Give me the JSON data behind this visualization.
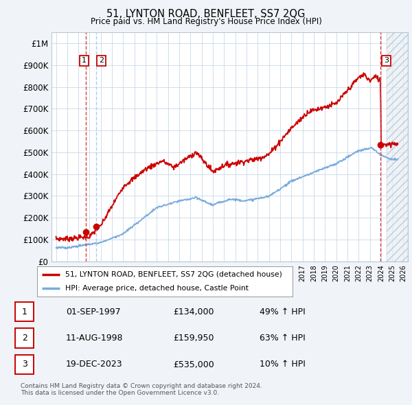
{
  "title": "51, LYNTON ROAD, BENFLEET, SS7 2QG",
  "subtitle": "Price paid vs. HM Land Registry's House Price Index (HPI)",
  "ylabel_ticks": [
    "£0",
    "£100K",
    "£200K",
    "£300K",
    "£400K",
    "£500K",
    "£600K",
    "£700K",
    "£800K",
    "£900K",
    "£1M"
  ],
  "ytick_values": [
    0,
    100000,
    200000,
    300000,
    400000,
    500000,
    600000,
    700000,
    800000,
    900000,
    1000000
  ],
  "ylim": [
    0,
    1050000
  ],
  "xlim_start": 1994.6,
  "xlim_end": 2026.4,
  "sale_dates": [
    1997.667,
    1998.608,
    2023.962
  ],
  "sale_prices": [
    134000,
    159950,
    535000
  ],
  "sale_labels": [
    "1",
    "2",
    "3"
  ],
  "marker_color": "#cc0000",
  "line_color_property": "#cc0000",
  "line_color_hpi": "#7aaadd",
  "legend_label_property": "51, LYNTON ROAD, BENFLEET, SS7 2QG (detached house)",
  "legend_label_hpi": "HPI: Average price, detached house, Castle Point",
  "table_data": [
    [
      "1",
      "01-SEP-1997",
      "£134,000",
      "49% ↑ HPI"
    ],
    [
      "2",
      "11-AUG-1998",
      "£159,950",
      "63% ↑ HPI"
    ],
    [
      "3",
      "19-DEC-2023",
      "£535,000",
      "10% ↑ HPI"
    ]
  ],
  "footnote": "Contains HM Land Registry data © Crown copyright and database right 2024.\nThis data is licensed under the Open Government Licence v3.0.",
  "background_color": "#f0f4f8",
  "plot_bg_color": "#ffffff",
  "grid_color": "#c8d8e8",
  "dashed_line_color_red": "#dd4444",
  "dashed_line_color_blue": "#aaccee",
  "hatch_color": "#dddddd",
  "future_cutoff": 2024.5
}
